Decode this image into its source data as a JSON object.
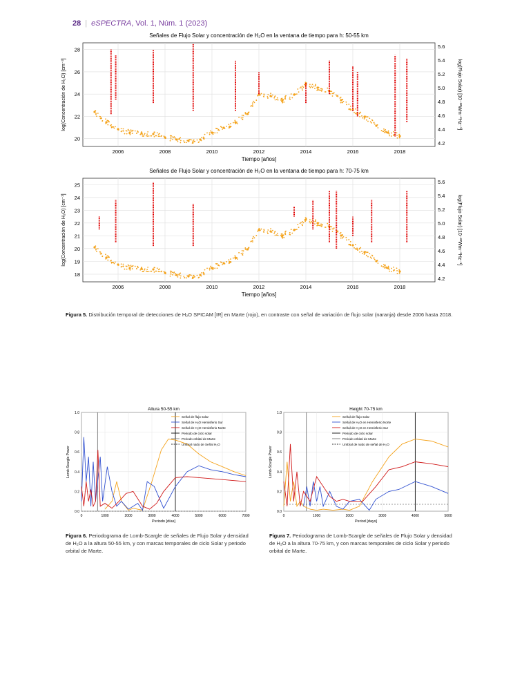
{
  "header": {
    "page_number": "28",
    "journal": "eSPECTRA",
    "issue": ", Vol. 1, Núm. 1 (2023)"
  },
  "colors": {
    "h2o": "#e00000",
    "flux": "#f4a21a",
    "solar_cycle": "#111111",
    "mars_orbit": "#777777"
  },
  "chart_data": [
    {
      "type": "scatter",
      "title": "Señales de Flujo Solar y concentración de H₂O en la ventana de tiempo para h: 50-55 km",
      "xlabel": "Tiempo [años]",
      "ylabel": "log(Concentración de H₂O) [cm⁻³]",
      "y2label": "log(Flujo Solar) [10⁻²²Wm⁻²Hz⁻¹]",
      "x_ticks": [
        "2006",
        "2008",
        "2010",
        "2012",
        "2014",
        "2016",
        "2018"
      ],
      "y_ticks": [
        "20",
        "22",
        "24",
        "26",
        "28"
      ],
      "y2_ticks": [
        "4.2",
        "4.4",
        "4.6",
        "4.8",
        "5.0",
        "5.2",
        "5.4",
        "5.6"
      ],
      "xlim": [
        2004.5,
        2019.5
      ],
      "ylim": [
        19.3,
        28.6
      ],
      "y2lim": [
        4.15,
        5.65
      ],
      "grid": true,
      "series": [
        {
          "name": "H₂O",
          "color": "#e00000",
          "x": [
            2005.7,
            2005.9,
            2007.5,
            2009.2,
            2011.0,
            2012.0,
            2014.0,
            2015.0,
            2016.0,
            2016.2,
            2017.8,
            2018.3
          ],
          "y_low": [
            22.2,
            23.5,
            23.2,
            22.5,
            22.5,
            24.0,
            23.2,
            24.0,
            22.5,
            22.0,
            20.2,
            21.5
          ],
          "y_high": [
            28.0,
            27.5,
            28.0,
            28.5,
            27.0,
            26.0,
            25.0,
            27.0,
            26.5,
            26.0,
            27.5,
            27.2
          ]
        },
        {
          "name": "Flujo solar",
          "color": "#f4a21a",
          "x": [
            2005.0,
            2005.5,
            2006.0,
            2006.5,
            2007.0,
            2007.5,
            2008.0,
            2008.5,
            2009.0,
            2009.5,
            2010.0,
            2010.5,
            2011.0,
            2011.5,
            2012.0,
            2012.5,
            2013.0,
            2013.5,
            2014.0,
            2014.5,
            2015.0,
            2015.5,
            2016.0,
            2016.5,
            2017.0,
            2017.5,
            2018.0
          ],
          "y": [
            4.65,
            4.5,
            4.4,
            4.35,
            4.34,
            4.33,
            4.28,
            4.25,
            4.23,
            4.25,
            4.35,
            4.42,
            4.5,
            4.62,
            4.9,
            4.88,
            4.82,
            4.9,
            5.05,
            5.0,
            4.95,
            4.82,
            4.68,
            4.58,
            4.45,
            4.35,
            4.3
          ]
        }
      ]
    },
    {
      "type": "scatter",
      "title": "Señales de Flujo Solar y concentración de H₂O en la ventana de tiempo para h: 70-75 km",
      "xlabel": "Tiempo [años]",
      "ylabel": "log(Concentración de H₂O) [cm⁻³]",
      "y2label": "log(Flujo Solar) [10⁻²²Wm⁻²Hz⁻¹]",
      "x_ticks": [
        "2006",
        "2008",
        "2010",
        "2012",
        "2014",
        "2016",
        "2018"
      ],
      "y_ticks": [
        "18",
        "19",
        "20",
        "21",
        "22",
        "23",
        "24",
        "25"
      ],
      "y2_ticks": [
        "4.2",
        "4.4",
        "4.6",
        "4.8",
        "5.0",
        "5.2",
        "5.4",
        "5.6"
      ],
      "xlim": [
        2004.5,
        2019.5
      ],
      "ylim": [
        17.4,
        25.5
      ],
      "y2lim": [
        4.15,
        5.65
      ],
      "grid": true,
      "series": [
        {
          "name": "H₂O",
          "color": "#e00000",
          "x": [
            2005.2,
            2005.9,
            2007.5,
            2009.2,
            2013.5,
            2014.3,
            2015.0,
            2015.3,
            2016.0,
            2016.8,
            2018.3
          ],
          "y_low": [
            21.5,
            20.5,
            20.2,
            20.2,
            22.5,
            21.5,
            20.5,
            20.0,
            21.0,
            20.5,
            20.5
          ],
          "y_high": [
            22.5,
            23.8,
            25.2,
            23.5,
            23.3,
            23.8,
            24.5,
            24.5,
            22.5,
            23.8,
            24.5
          ]
        },
        {
          "name": "Flujo solar",
          "color": "#f4a21a",
          "x": [
            2005.0,
            2005.5,
            2006.0,
            2006.5,
            2007.0,
            2007.5,
            2008.0,
            2008.5,
            2009.0,
            2009.5,
            2010.0,
            2010.5,
            2011.0,
            2011.5,
            2012.0,
            2012.5,
            2013.0,
            2013.5,
            2014.0,
            2014.5,
            2015.0,
            2015.5,
            2016.0,
            2016.5,
            2017.0,
            2017.5,
            2018.0
          ],
          "y": [
            4.65,
            4.5,
            4.4,
            4.35,
            4.34,
            4.33,
            4.28,
            4.25,
            4.23,
            4.25,
            4.35,
            4.42,
            4.5,
            4.62,
            4.9,
            4.88,
            4.82,
            4.9,
            5.05,
            5.0,
            4.95,
            4.82,
            4.68,
            4.58,
            4.45,
            4.35,
            4.3
          ]
        }
      ]
    },
    {
      "type": "line",
      "title": "Altura 50-55 km",
      "xlabel": "Periodo [días]",
      "ylabel": "Lomb-Scargle Power",
      "x_ticks": [
        "0",
        "1000",
        "2000",
        "3000",
        "4000",
        "5000",
        "6000",
        "7000"
      ],
      "y_ticks": [
        "0.0",
        "0.2",
        "0.4",
        "0.6",
        "0.8",
        "1.0"
      ],
      "xlim": [
        0,
        7000
      ],
      "ylim": [
        0,
        1.0
      ],
      "legend": "top-right",
      "vlines": [
        {
          "name": "Periodo de ciclo solar",
          "x": 4000,
          "color": "#111111"
        },
        {
          "name": "Periodo orbital de Marte",
          "x": 687,
          "color": "#777777"
        }
      ],
      "hline": {
        "name": "Umbral ruido de Señal H₂O",
        "y": 0.0
      },
      "series": [
        {
          "name": "Señal de flujo solar",
          "color": "#f4a21a",
          "x": [
            1000,
            1300,
            1500,
            1700,
            2000,
            2200,
            2600,
            3000,
            3400,
            3700,
            4000,
            4500,
            5000,
            5500,
            6000,
            6500,
            7000
          ],
          "y": [
            0.02,
            0.1,
            0.3,
            0.1,
            0.01,
            0.03,
            0.01,
            0.3,
            0.62,
            0.73,
            0.72,
            0.68,
            0.58,
            0.5,
            0.45,
            0.4,
            0.36
          ]
        },
        {
          "name": "Señal de H₂O Hemisferio Sur",
          "color": "#3050d0",
          "x": [
            0,
            100,
            200,
            300,
            400,
            500,
            600,
            800,
            900,
            1100,
            1300,
            1500,
            1700,
            2000,
            2400,
            2600,
            2800,
            3100,
            3500,
            4000,
            4500,
            5000,
            5500,
            6000,
            6500,
            7000
          ],
          "y": [
            0.1,
            0.75,
            0.3,
            0.55,
            0.05,
            0.5,
            0.1,
            0.55,
            0.1,
            0.45,
            0.2,
            0.05,
            0.1,
            0.02,
            0.08,
            0.01,
            0.3,
            0.25,
            0.03,
            0.25,
            0.4,
            0.46,
            0.42,
            0.4,
            0.37,
            0.35
          ]
        },
        {
          "name": "Señal de H₂O Hemisferio Norte",
          "color": "#d01818",
          "x": [
            0,
            100,
            200,
            300,
            400,
            500,
            600,
            700,
            800,
            1000,
            1300,
            1600,
            1900,
            2200,
            2600,
            2900,
            3200,
            3500,
            4000,
            4500,
            5000,
            5500,
            6000,
            6500,
            7000
          ],
          "y": [
            0.25,
            0.05,
            0.3,
            0.1,
            0.22,
            0.05,
            0.1,
            0.62,
            0.05,
            0.08,
            0.03,
            0.1,
            0.18,
            0.2,
            0.05,
            0.02,
            0.08,
            0.2,
            0.34,
            0.35,
            0.34,
            0.33,
            0.32,
            0.31,
            0.3
          ]
        }
      ]
    },
    {
      "type": "line",
      "title": "Height 70-75 km",
      "xlabel": "Period [days]",
      "ylabel": "Lomb-Scargle Power",
      "x_ticks": [
        "0",
        "1000",
        "2000",
        "3000",
        "4000",
        "5000"
      ],
      "y_ticks": [
        "0.0",
        "0.2",
        "0.4",
        "0.6",
        "0.8",
        "1.0"
      ],
      "xlim": [
        0,
        5000
      ],
      "ylim": [
        0,
        1.0
      ],
      "legend": "top-left",
      "vlines": [
        {
          "name": "Periodo de ciclo solar",
          "x": 4000,
          "color": "#111111"
        },
        {
          "name": "Periodo orbital de Marte",
          "x": 687,
          "color": "#777777"
        }
      ],
      "hline": {
        "name": "Umbral de ruido de señal de H₂O",
        "y": 0.07
      },
      "series": [
        {
          "name": "Señal de flujo solar",
          "color": "#f4a21a",
          "x": [
            0,
            100,
            200,
            300,
            400,
            500,
            600,
            800,
            1000,
            1200,
            1500,
            1800,
            2000,
            2300,
            2700,
            3200,
            3600,
            4000,
            4500,
            5000
          ],
          "y": [
            0.05,
            0.5,
            0.1,
            0.3,
            0.05,
            0.1,
            0.05,
            0.02,
            0.01,
            0.02,
            0.01,
            0.02,
            0.01,
            0.05,
            0.3,
            0.55,
            0.68,
            0.73,
            0.71,
            0.65
          ]
        },
        {
          "name": "Señal de H₂O en Hemisferio Norte",
          "color": "#3050d0",
          "x": [
            600,
            700,
            800,
            900,
            1000,
            1100,
            1200,
            1400,
            1600,
            1800,
            2000,
            2300,
            2600,
            2800,
            3200,
            3500,
            4000,
            4500,
            5000
          ],
          "y": [
            0.05,
            0.25,
            0.05,
            0.3,
            0.1,
            0.25,
            0.05,
            0.2,
            0.05,
            0.02,
            0.1,
            0.12,
            0.01,
            0.12,
            0.2,
            0.22,
            0.3,
            0.25,
            0.18
          ]
        },
        {
          "name": "Señal de H₂O en Hemisferio Sur",
          "color": "#d01818",
          "x": [
            0,
            100,
            200,
            300,
            400,
            500,
            600,
            800,
            1000,
            1200,
            1400,
            1600,
            1800,
            2000,
            2400,
            2800,
            3200,
            3600,
            4000,
            4500,
            5000
          ],
          "y": [
            0.3,
            0.05,
            0.68,
            0.1,
            0.4,
            0.05,
            0.2,
            0.1,
            0.35,
            0.25,
            0.15,
            0.1,
            0.12,
            0.1,
            0.1,
            0.25,
            0.42,
            0.45,
            0.5,
            0.48,
            0.45
          ]
        }
      ]
    }
  ],
  "captions": {
    "fig5_label": "Figura 5.",
    "fig5_text": "Distribución temporal de detecciones de H₂O SPICAM [IR] en Marte (rojo), en contraste con señal de variación de flujo solar (naranja) desde 2006 hasta 2018.",
    "fig6_label": "Figura 6.",
    "fig6_text": "Periodograma de Lomb-Scargle de señales de Flujo Solar y densidad de H₂O a la altura 50-55 km, y con marcas temporales de ciclo Solar y periodo orbital de Marte.",
    "fig7_label": "Figura 7.",
    "fig7_text": "Periodograma de Lomb-Scargle de señales de Flujo Solar y densidad de H₂O a la altura 70-75 km, y con marcas temporales de ciclo Solar y periodo orbital de Marte."
  }
}
